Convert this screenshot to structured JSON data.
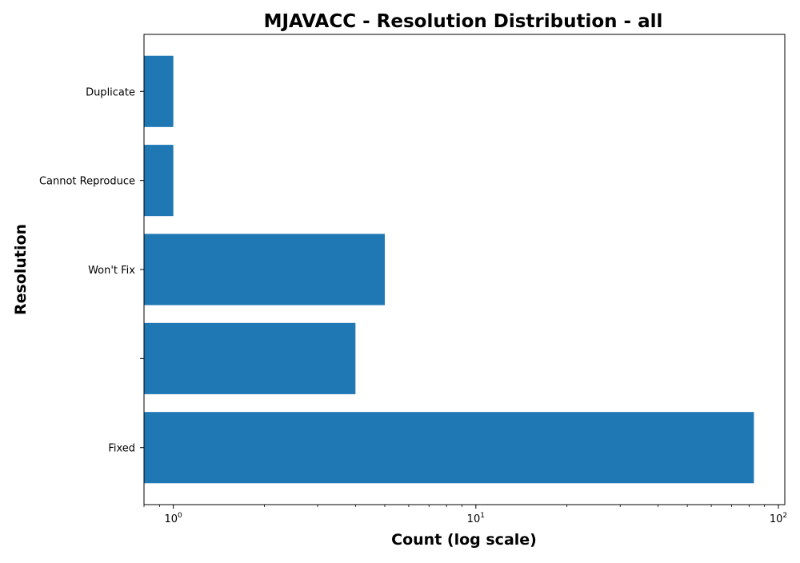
{
  "chart_data": {
    "type": "bar",
    "orientation": "horizontal",
    "title": "MJAVACC - Resolution Distribution - all",
    "xlabel": "Count (log scale)",
    "ylabel": "Resolution",
    "x_scale": "log",
    "xlim": [
      0.8,
      105
    ],
    "x_ticks": [
      {
        "value": 1,
        "base": "10",
        "exp": "0"
      },
      {
        "value": 10,
        "base": "10",
        "exp": "1"
      },
      {
        "value": 100,
        "base": "10",
        "exp": "2"
      }
    ],
    "categories": [
      "Fixed",
      "",
      "Won't Fix",
      "Cannot Reproduce",
      "Duplicate"
    ],
    "values": [
      83,
      4,
      5,
      1,
      1
    ],
    "bar_color": "#1f77b4",
    "grid": false,
    "legend": "none"
  }
}
